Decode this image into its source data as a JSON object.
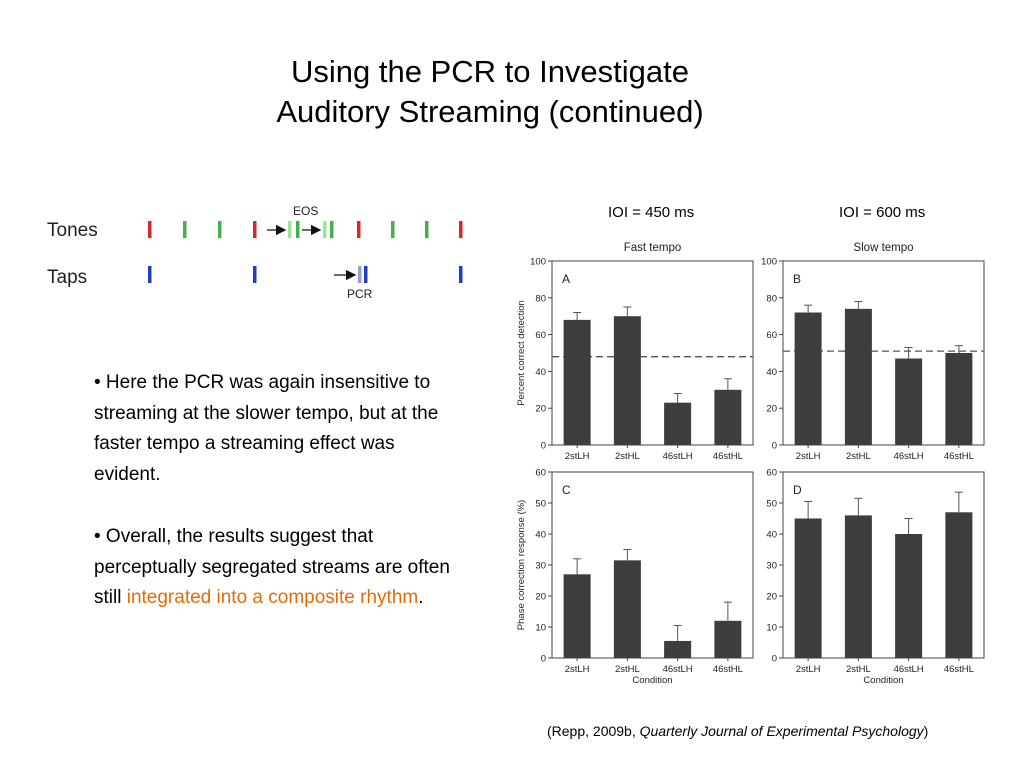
{
  "slide": {
    "title_line1": "Using the PCR to Investigate",
    "title_line2": "Auditory Streaming (continued)",
    "bullet1": "• Here the PCR was again insensitive to streaming at the slower tempo, but at the faster tempo a streaming effect was evident.",
    "bullet2_pre": "• Overall, the results suggest that perceptually segregated streams are often still ",
    "bullet2_hl": "integrated into a composite rhythm",
    "bullet2_post": ".",
    "highlight_color": "#e36c09",
    "ioi_450": "IOI = 450 ms",
    "ioi_600": "IOI = 600 ms",
    "citation_pre": "(Repp, 2009b, ",
    "citation_journal": "Quarterly Journal of Experimental Psychology",
    "citation_post": ")"
  },
  "diagram": {
    "tones_label": "Tones",
    "taps_label": "Taps",
    "eos_label": "EOS",
    "pcr_label": "PCR",
    "colors": {
      "red": "#d9262b",
      "green": "#3cb44b",
      "blue": "#1f3fbf",
      "light_green": "#9fe39a",
      "light_blue": "#9a9cd8"
    }
  },
  "chart_data": [
    {
      "panel": "A",
      "type": "bar",
      "column_title": "Fast tempo",
      "ylabel": "Percent correct detection",
      "xlabel": "",
      "categories": [
        "2stLH",
        "2stHL",
        "46stLH",
        "46stHL"
      ],
      "values": [
        68,
        70,
        23,
        30
      ],
      "errors": [
        4,
        5,
        5,
        6
      ],
      "ylim": [
        0,
        100
      ],
      "yticks": [
        "0",
        "20",
        "40",
        "60",
        "80",
        "100"
      ],
      "reference_line": 48
    },
    {
      "panel": "B",
      "type": "bar",
      "column_title": "Slow tempo",
      "ylabel": "",
      "xlabel": "",
      "categories": [
        "2stLH",
        "2stHL",
        "46stLH",
        "46stHL"
      ],
      "values": [
        72,
        74,
        47,
        50
      ],
      "errors": [
        4,
        4,
        6,
        4
      ],
      "ylim": [
        0,
        100
      ],
      "yticks": [
        "0",
        "20",
        "40",
        "60",
        "80",
        "100"
      ],
      "reference_line": 51
    },
    {
      "panel": "C",
      "type": "bar",
      "column_title": "",
      "ylabel": "Phase correction response (%)",
      "xlabel": "Condition",
      "categories": [
        "2stLH",
        "2stHL",
        "46stLH",
        "46stHL"
      ],
      "values": [
        27,
        31.5,
        5.5,
        12
      ],
      "errors": [
        5,
        3.5,
        5,
        6
      ],
      "ylim": [
        0,
        60
      ],
      "yticks": [
        "0",
        "10",
        "20",
        "30",
        "40",
        "50",
        "60"
      ]
    },
    {
      "panel": "D",
      "type": "bar",
      "column_title": "",
      "ylabel": "",
      "xlabel": "Condition",
      "categories": [
        "2stLH",
        "2stHL",
        "46stLH",
        "46stHL"
      ],
      "values": [
        45,
        46,
        40,
        47
      ],
      "errors": [
        5.5,
        5.5,
        5,
        6.5
      ],
      "ylim": [
        0,
        60
      ],
      "yticks": [
        "0",
        "10",
        "20",
        "30",
        "40",
        "50",
        "60"
      ]
    }
  ]
}
